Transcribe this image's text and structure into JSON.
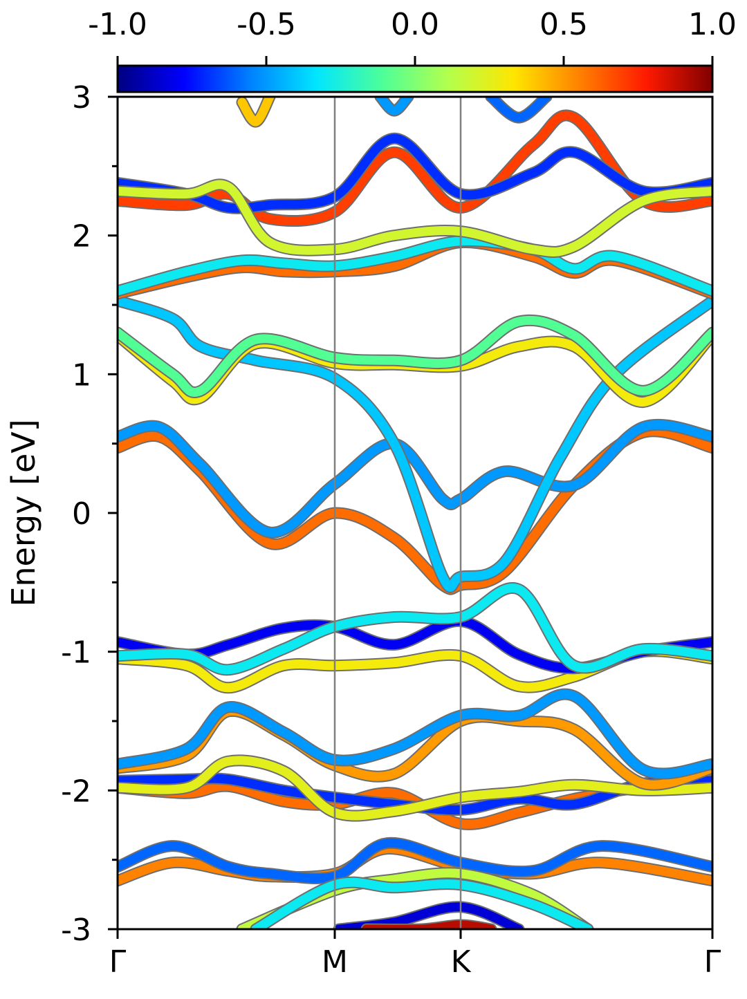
{
  "chart_data": {
    "type": "line",
    "subtype": "band-structure",
    "title": "",
    "xlabel": "",
    "ylabel": "Energy [eV]",
    "ylim": [
      -3,
      3
    ],
    "y_ticks": [
      3,
      2,
      1,
      0,
      -1,
      -2,
      -3
    ],
    "y_tick_labels": [
      "3",
      "2",
      "1",
      "0",
      "-1",
      "-2",
      "-3"
    ],
    "y_minor_ticks": [
      2.5,
      1.5,
      0.5,
      -0.5,
      -1.5,
      -2.5
    ],
    "xlim": [
      0,
      4.3
    ],
    "high_symmetry_points": [
      {
        "label": "Γ",
        "x": 0
      },
      {
        "label": "M",
        "x": 1.57
      },
      {
        "label": "K",
        "x": 2.48
      },
      {
        "label": "Γ",
        "x": 4.3
      }
    ],
    "vertical_lines_at": [
      1.57,
      2.48
    ],
    "grid": false,
    "colorbar": {
      "position": "top",
      "colormap": "jet",
      "range": [
        -1.0,
        1.0
      ],
      "ticks": [
        -1.0,
        -0.5,
        0.0,
        0.5,
        1.0
      ],
      "tick_labels": [
        "-1.0",
        "-0.5",
        "0.0",
        "0.5",
        "1.0"
      ]
    },
    "colormap_stops": [
      "#000080",
      "#0000ff",
      "#0080ff",
      "#00e5ff",
      "#4dff99",
      "#b3ff4d",
      "#ffe600",
      "#ff8000",
      "#ff1a00",
      "#800000"
    ],
    "series": [
      {
        "x": [
          0,
          0.4,
          0.8,
          1.1,
          1.57,
          1.95,
          2.48,
          3.0,
          3.5,
          4.3
        ],
        "energy": [
          -2.65,
          -2.52,
          -2.58,
          -2.62,
          -2.6,
          -2.42,
          -2.55,
          -2.6,
          -2.52,
          -2.65
        ],
        "color_value": 0.55
      },
      {
        "x": [
          0,
          0.4,
          0.8,
          1.1,
          1.57,
          1.95,
          2.48,
          3.0,
          3.5,
          4.3
        ],
        "energy": [
          -2.55,
          -2.4,
          -2.55,
          -2.6,
          -2.62,
          -2.38,
          -2.52,
          -2.58,
          -2.4,
          -2.55
        ],
        "color_value": -0.6
      },
      {
        "x": [
          0.9,
          1.57,
          2.0,
          2.48,
          3.0,
          3.4
        ],
        "energy": [
          -3.0,
          -2.72,
          -2.64,
          -2.6,
          -2.75,
          -3.0
        ],
        "color_value": 0.15
      },
      {
        "x": [
          1.0,
          1.57,
          2.0,
          2.48,
          3.0,
          3.4
        ],
        "energy": [
          -3.0,
          -2.68,
          -2.7,
          -2.68,
          -2.82,
          -3.0
        ],
        "color_value": -0.3
      },
      {
        "x": [
          1.6,
          2.0,
          2.48,
          2.9
        ],
        "energy": [
          -3.0,
          -2.95,
          -2.84,
          -3.0
        ],
        "color_value": -0.85
      },
      {
        "x": [
          1.8,
          2.2,
          2.48,
          2.7
        ],
        "energy": [
          -3.0,
          -3.0,
          -2.97,
          -3.0
        ],
        "color_value": 0.9
      },
      {
        "x": [
          0,
          0.5,
          0.8,
          1.2,
          1.57,
          2.0,
          2.48,
          2.9,
          3.3,
          3.8,
          4.3
        ],
        "energy": [
          -1.98,
          -2.02,
          -1.97,
          -2.08,
          -2.1,
          -2.02,
          -2.24,
          -2.16,
          -2.06,
          -1.98,
          -1.98
        ],
        "color_value": 0.6
      },
      {
        "x": [
          0,
          0.5,
          0.8,
          1.2,
          1.57,
          2.0,
          2.48,
          2.9,
          3.3,
          3.8,
          4.3
        ],
        "energy": [
          -1.93,
          -1.92,
          -1.92,
          -2.0,
          -2.05,
          -2.1,
          -2.14,
          -2.06,
          -2.1,
          -1.95,
          -1.93
        ],
        "color_value": -0.7
      },
      {
        "x": [
          0,
          0.5,
          0.8,
          1.2,
          1.57,
          2.0,
          2.48,
          2.9,
          3.3,
          3.8,
          4.3
        ],
        "energy": [
          -1.98,
          -1.98,
          -1.79,
          -1.86,
          -2.16,
          -2.15,
          -2.05,
          -2.01,
          -1.96,
          -2.0,
          -1.98
        ],
        "color_value": 0.25
      },
      {
        "x": [
          0,
          0.5,
          0.8,
          1.2,
          1.57,
          2.0,
          2.48,
          2.9,
          3.3,
          3.8,
          4.3
        ],
        "energy": [
          -1.84,
          -1.75,
          -1.43,
          -1.6,
          -1.82,
          -1.88,
          -1.5,
          -1.5,
          -1.56,
          -1.95,
          -1.84
        ],
        "color_value": 0.5
      },
      {
        "x": [
          0,
          0.5,
          0.8,
          1.2,
          1.57,
          2.0,
          2.48,
          2.9,
          3.3,
          3.8,
          4.3
        ],
        "energy": [
          -1.81,
          -1.7,
          -1.4,
          -1.58,
          -1.78,
          -1.7,
          -1.46,
          -1.46,
          -1.32,
          -1.85,
          -1.81
        ],
        "color_value": -0.5
      },
      {
        "x": [
          0,
          0.5,
          0.8,
          1.2,
          1.57,
          2.0,
          2.48,
          2.9,
          3.3,
          3.8,
          4.3
        ],
        "energy": [
          -1.05,
          -1.1,
          -1.26,
          -1.1,
          -1.1,
          -1.08,
          -1.03,
          -1.25,
          -1.18,
          -1.0,
          -1.05
        ],
        "color_value": 0.3
      },
      {
        "x": [
          0,
          0.5,
          0.8,
          1.2,
          1.57,
          2.0,
          2.48,
          2.9,
          3.3,
          3.8,
          4.3
        ],
        "energy": [
          -0.93,
          -1.02,
          -0.95,
          -0.83,
          -0.82,
          -0.95,
          -0.78,
          -1.02,
          -1.12,
          -1.0,
          -0.93
        ],
        "color_value": -0.8
      },
      {
        "x": [
          0,
          0.5,
          0.8,
          1.2,
          1.57,
          2.0,
          2.48,
          2.9,
          3.3,
          3.8,
          4.3
        ],
        "energy": [
          -1.03,
          -1.02,
          -1.13,
          -0.98,
          -0.82,
          -0.75,
          -0.75,
          -0.55,
          -1.1,
          -0.98,
          -1.03
        ],
        "color_value": -0.3
      },
      {
        "x": [
          0,
          0.3,
          0.6,
          1.1,
          1.57,
          2.0,
          2.35,
          2.48,
          2.8,
          3.3,
          3.8,
          4.3
        ],
        "energy": [
          0.47,
          0.55,
          0.3,
          -0.22,
          0.0,
          -0.18,
          -0.52,
          -0.52,
          -0.42,
          0.2,
          0.58,
          0.47
        ],
        "color_value": 0.6
      },
      {
        "x": [
          0,
          0.3,
          0.6,
          1.1,
          1.57,
          2.0,
          2.35,
          2.48,
          2.8,
          3.3,
          3.8,
          4.3
        ],
        "energy": [
          0.55,
          0.62,
          0.35,
          -0.14,
          0.21,
          0.5,
          0.1,
          0.1,
          0.3,
          0.2,
          0.62,
          0.55
        ],
        "color_value": -0.5
      },
      {
        "x": [
          0,
          0.4,
          0.6,
          1.0,
          1.57,
          2.0,
          2.35,
          2.48,
          2.8,
          3.2,
          3.6,
          4.3
        ],
        "energy": [
          1.53,
          1.4,
          1.2,
          1.1,
          0.97,
          0.5,
          -0.46,
          -0.46,
          -0.35,
          0.4,
          1.0,
          1.53
        ],
        "color_value": -0.4
      },
      {
        "x": [
          0,
          0.4,
          0.6,
          1.0,
          1.57,
          2.0,
          2.48,
          2.9,
          3.3,
          3.8,
          4.3
        ],
        "energy": [
          1.28,
          0.95,
          0.83,
          1.22,
          1.08,
          1.07,
          1.06,
          1.2,
          1.2,
          0.8,
          1.28
        ],
        "color_value": 0.3
      },
      {
        "x": [
          0,
          0.4,
          0.6,
          1.0,
          1.57,
          2.0,
          2.48,
          2.9,
          3.3,
          3.8,
          4.3
        ],
        "energy": [
          1.3,
          1.0,
          0.88,
          1.25,
          1.12,
          1.1,
          1.1,
          1.38,
          1.28,
          0.88,
          1.3
        ],
        "color_value": -0.1
      },
      {
        "x": [
          0,
          0.5,
          0.9,
          1.2,
          1.57,
          2.0,
          2.48,
          3.0,
          3.3,
          3.6,
          4.3
        ],
        "energy": [
          1.58,
          1.7,
          1.77,
          1.74,
          1.74,
          1.78,
          1.95,
          1.85,
          1.73,
          1.82,
          1.58
        ],
        "color_value": 0.6
      },
      {
        "x": [
          0,
          0.5,
          0.9,
          1.2,
          1.57,
          2.0,
          2.48,
          3.0,
          3.3,
          3.6,
          4.3
        ],
        "energy": [
          1.6,
          1.74,
          1.82,
          1.8,
          1.78,
          1.85,
          1.96,
          1.9,
          1.76,
          1.85,
          1.6
        ],
        "color_value": -0.3
      },
      {
        "x": [
          0,
          0.5,
          0.8,
          1.1,
          1.57,
          2.0,
          2.48,
          3.0,
          3.3,
          3.8,
          4.3
        ],
        "energy": [
          2.25,
          2.22,
          2.3,
          2.12,
          2.17,
          2.6,
          2.2,
          2.65,
          2.85,
          2.25,
          2.25
        ],
        "color_value": 0.7
      },
      {
        "x": [
          0,
          0.5,
          0.8,
          1.1,
          1.57,
          2.0,
          2.48,
          3.0,
          3.3,
          3.8,
          4.3
        ],
        "energy": [
          2.38,
          2.3,
          2.2,
          2.22,
          2.28,
          2.7,
          2.3,
          2.45,
          2.6,
          2.32,
          2.38
        ],
        "color_value": -0.7
      },
      {
        "x": [
          0,
          0.5,
          0.8,
          1.1,
          1.57,
          2.0,
          2.48,
          3.0,
          3.3,
          3.8,
          4.3
        ],
        "energy": [
          2.32,
          2.3,
          2.35,
          1.95,
          1.9,
          2.0,
          2.03,
          1.9,
          1.92,
          2.25,
          2.32
        ],
        "color_value": 0.2
      },
      {
        "x": [
          0.9,
          1.0,
          1.1
        ],
        "energy": [
          2.96,
          2.82,
          3.0
        ],
        "color_value": 0.4
      },
      {
        "x": [
          1.9,
          2.0,
          2.1
        ],
        "energy": [
          3.0,
          2.9,
          3.0
        ],
        "color_value": -0.5
      },
      {
        "x": [
          2.7,
          2.9,
          3.1
        ],
        "energy": [
          3.0,
          2.85,
          3.0
        ],
        "color_value": -0.6
      }
    ]
  }
}
